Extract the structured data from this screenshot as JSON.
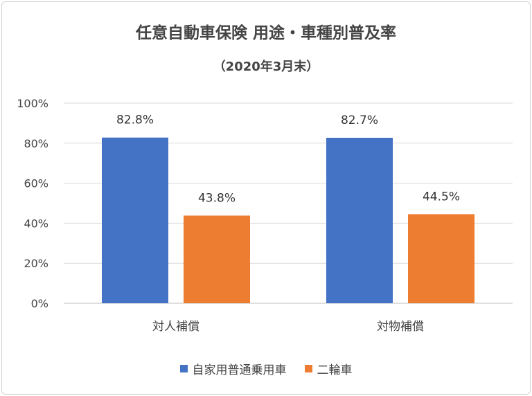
{
  "chart_data": {
    "type": "bar",
    "title": "任意自動車保険 用途・車種別普及率",
    "subtitle": "（2020年3月末）",
    "categories": [
      "対人補償",
      "対物補償"
    ],
    "series": [
      {
        "name": "自家用普通乗用車",
        "values": [
          82.8,
          82.7
        ],
        "color": "#4472C4"
      },
      {
        "name": "二輪車",
        "values": [
          43.8,
          44.5
        ],
        "color": "#ED7D31"
      }
    ],
    "data_labels": [
      [
        "82.8%",
        "82.7%"
      ],
      [
        "43.8%",
        "44.5%"
      ]
    ],
    "yticks": [
      "0%",
      "20%",
      "40%",
      "60%",
      "80%",
      "100%"
    ],
    "ylim": [
      0,
      100
    ],
    "grid": true,
    "legend_position": "bottom",
    "xlabel": "",
    "ylabel": ""
  }
}
